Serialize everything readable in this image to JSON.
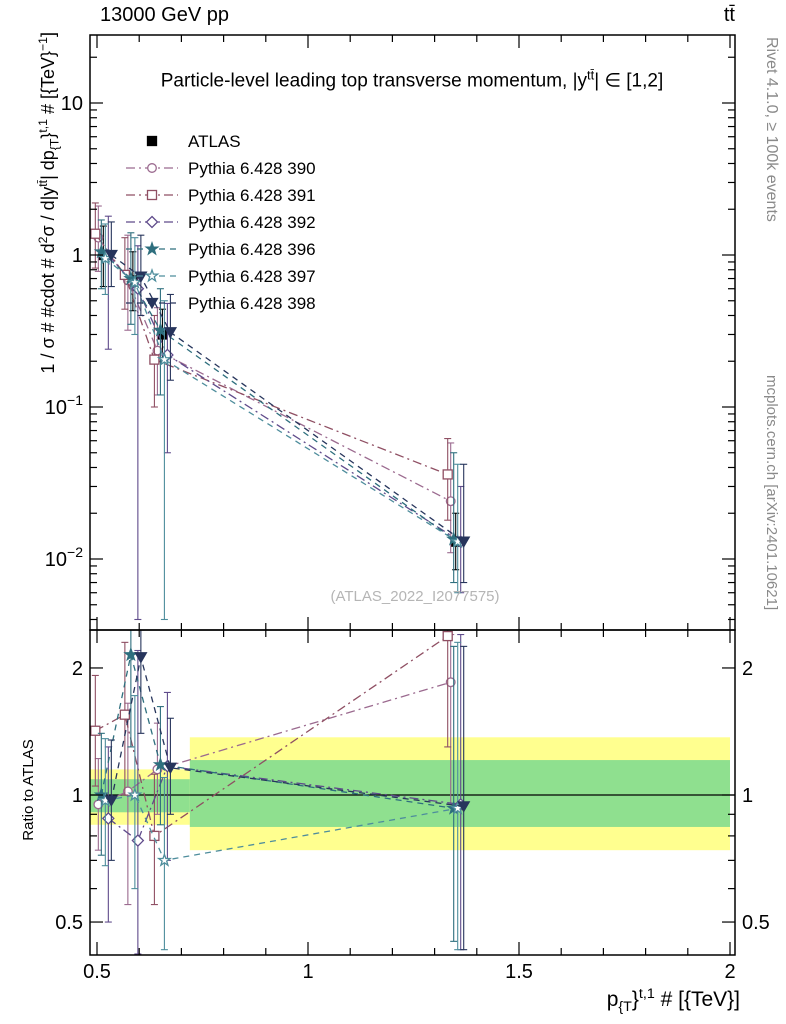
{
  "header": {
    "left": "13000 GeV pp",
    "right": "tt̄"
  },
  "panel_title_parts": [
    {
      "t": "Particle-level leading top transverse momentum, |y"
    },
    {
      "t": "tt̄",
      "sup": true
    },
    {
      "t": "| ∈ [1,2]"
    }
  ],
  "watermark": "(ATLAS_2022_I2077575)",
  "credits": {
    "right_top": "Rivet 4.1.0, ≥ 100k events",
    "right_bottom": "mcplots.cern.ch [arXiv:2401.10621]"
  },
  "axis_labels": {
    "ratio": "Ratio to ATLAS",
    "x_parts": [
      {
        "t": "p"
      },
      {
        "t": "{T",
        "sub": true
      },
      {
        "t": "}"
      },
      {
        "t": "t,1",
        "sup": true
      },
      {
        "t": " # [{TeV}]"
      }
    ],
    "y_parts": [
      {
        "t": "1 / σ # #cdot # d"
      },
      {
        "t": "2",
        "sup": true
      },
      {
        "t": "σ / d|y"
      },
      {
        "t": "tt̄",
        "sup": true
      },
      {
        "t": "| dp"
      },
      {
        "t": "{T",
        "sub": true
      },
      {
        "t": "}"
      },
      {
        "t": "t,1",
        "sup": true
      },
      {
        "t": " # [{TeV}"
      },
      {
        "t": "−1",
        "sup": true
      },
      {
        "t": "]"
      }
    ]
  },
  "chart_data": {
    "type": "scatter",
    "title": "Particle-level leading top transverse momentum, |y^tt| ∈ [1,2]",
    "xlabel": "p_T^{t,1} [TeV]",
    "ylabel": "1/σ · d²σ/d|y^tt| dp_T^{t,1} [TeV⁻¹]",
    "x_range": [
      0.4834,
      2.0284
    ],
    "y_range_main": [
      0.0034,
      28
    ],
    "y_range_ratio": [
      0.4177,
      2.434
    ],
    "x": [
      0.515,
      0.585,
      0.655,
      1.35
    ],
    "x_ticks": {
      "major": [
        0.5,
        1,
        1.5,
        2
      ],
      "labels": [
        "0.5",
        "1",
        "1.5",
        "2"
      ]
    },
    "y_ticks_main": {
      "major": [
        10,
        1,
        0.1,
        0.01
      ],
      "labels": [
        {
          "base": "10"
        },
        {
          "base": "1"
        },
        {
          "base": "10",
          "exp": "−1"
        },
        {
          "base": "10",
          "exp": "−2"
        }
      ]
    },
    "y_ticks_ratio": {
      "major": [
        2,
        1,
        0.5
      ],
      "labels": [
        "2",
        "1",
        "0.5"
      ]
    },
    "reference_line": 1,
    "band_colors": {
      "yellow": "#ffff8f",
      "green": "#8fe08f"
    },
    "bands": [
      {
        "x0": 0.4834,
        "x1": 0.72,
        "yellow": [
          0.85,
          1.15
        ],
        "green": [
          0.91,
          1.09
        ]
      },
      {
        "x0": 0.72,
        "x1": 2.0,
        "yellow": [
          0.74,
          1.37
        ],
        "green": [
          0.84,
          1.21
        ]
      }
    ],
    "series": [
      {
        "id": "atlas",
        "name": "ATLAS",
        "marker": "square",
        "filled": true,
        "color": "#000000",
        "line": "none",
        "values": [
          1.0,
          0.68,
          0.3,
          0.013
        ],
        "err_lo": [
          0.62,
          0.43,
          0.2,
          0.0085
        ],
        "err_hi": [
          1.55,
          1.05,
          0.44,
          0.02
        ]
      },
      {
        "id": "pythia-390",
        "name": "Pythia 6.428 390",
        "marker": "circle",
        "filled": false,
        "color": "#9b6a8f",
        "line": "dashdot",
        "values": [
          1.3,
          0.68,
          0.235,
          0.024
        ],
        "err_lo": [
          0.78,
          0.32,
          0.12,
          0.011
        ],
        "err_hi": [
          2.1,
          1.35,
          0.45,
          0.058
        ],
        "ratio": [
          0.95,
          1.02,
          1.15,
          1.85
        ],
        "ratio_err_lo": [
          0.74,
          0.55,
          0.9,
          0.95
        ],
        "ratio_err_hi": [
          1.22,
          1.65,
          1.48,
          2.4
        ]
      },
      {
        "id": "pythia-391",
        "name": "Pythia 6.428 391",
        "marker": "square",
        "filled": false,
        "color": "#8f4f63",
        "line": "dashdot",
        "values": [
          1.38,
          0.74,
          0.205,
          0.036
        ],
        "err_lo": [
          0.82,
          0.44,
          0.1,
          0.018
        ],
        "err_hi": [
          2.2,
          1.3,
          0.4,
          0.062
        ],
        "ratio": [
          1.42,
          1.55,
          0.8,
          2.38
        ],
        "ratio_err_lo": [
          1.05,
          1.0,
          0.55,
          1.3
        ],
        "ratio_err_hi": [
          1.92,
          2.3,
          1.12,
          2.46
        ]
      },
      {
        "id": "pythia-392",
        "name": "Pythia 6.428 392",
        "marker": "diamond",
        "filled": false,
        "color": "#5f4b8b",
        "line": "dashdot",
        "values": [
          1.0,
          0.6,
          0.22,
          0.013
        ],
        "err_lo": [
          0.24,
          0.004,
          0.05,
          0.006
        ],
        "err_hi": [
          1.8,
          1.15,
          0.48,
          0.03
        ],
        "ratio": [
          0.88,
          0.78,
          1.17,
          0.95
        ],
        "ratio_err_lo": [
          0.5,
          0.42,
          0.7,
          0.43
        ],
        "ratio_err_hi": [
          1.3,
          2.2,
          1.75,
          2.4
        ]
      },
      {
        "id": "pythia-396",
        "name": "Pythia 6.428 396",
        "marker": "star",
        "filled": true,
        "color": "#2e6f7e",
        "line": "dashed",
        "values": [
          1.05,
          0.7,
          0.32,
          0.0135
        ],
        "err_lo": [
          0.6,
          0.35,
          0.12,
          0.007
        ],
        "err_hi": [
          1.7,
          1.4,
          0.6,
          0.05
        ],
        "ratio": [
          1.0,
          2.15,
          1.18,
          0.93
        ],
        "ratio_err_lo": [
          0.72,
          1.3,
          0.85,
          0.45
        ],
        "ratio_err_hi": [
          1.4,
          2.46,
          1.62,
          2.25
        ]
      },
      {
        "id": "pythia-397",
        "name": "Pythia 6.428 397",
        "marker": "star",
        "filled": false,
        "color": "#4e8d9c",
        "line": "dashed",
        "values": [
          0.95,
          0.66,
          0.205,
          0.013
        ],
        "err_lo": [
          0.55,
          0.3,
          0.004,
          0.006
        ],
        "err_hi": [
          1.6,
          1.3,
          0.5,
          0.042
        ],
        "ratio": [
          0.97,
          1.0,
          0.7,
          0.93
        ],
        "ratio_err_lo": [
          0.68,
          0.6,
          0.43,
          0.43
        ],
        "ratio_err_hi": [
          1.36,
          1.72,
          1.1,
          2.3
        ]
      },
      {
        "id": "pythia-398",
        "name": "Pythia 6.428 398",
        "marker": "triangle-down",
        "filled": true,
        "color": "#27355c",
        "line": "dashed",
        "values": [
          1.0,
          0.72,
          0.31,
          0.013
        ],
        "err_lo": [
          0.62,
          0.4,
          0.15,
          0.007
        ],
        "err_hi": [
          1.65,
          1.35,
          0.55,
          0.042
        ],
        "ratio": [
          0.97,
          2.12,
          1.16,
          0.94
        ],
        "ratio_err_lo": [
          0.7,
          1.4,
          0.9,
          0.43
        ],
        "ratio_err_hi": [
          1.35,
          2.46,
          1.52,
          2.25
        ]
      }
    ]
  }
}
